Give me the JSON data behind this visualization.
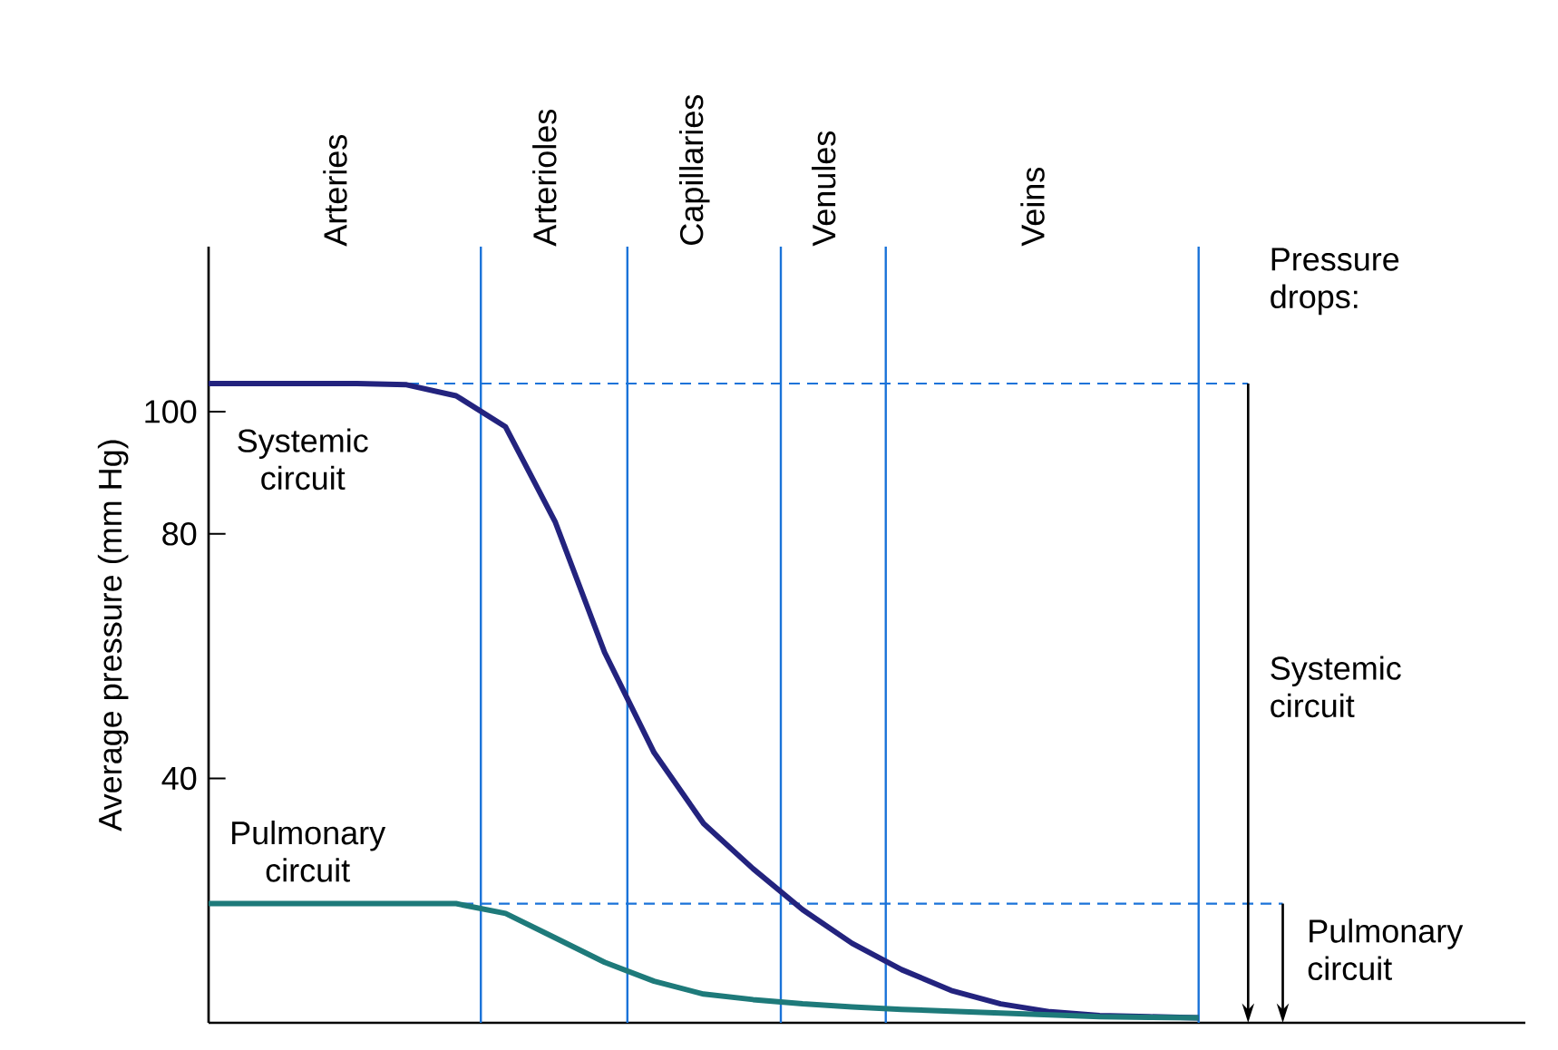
{
  "chart_data": {
    "type": "line",
    "ylabel": "Average pressure (mm Hg)",
    "ylim": [
      0,
      127
    ],
    "yticks": [
      40,
      80,
      100
    ],
    "tick_labels": "y",
    "marker": "none",
    "line_style": "solid",
    "categories": [
      null,
      null,
      null,
      null,
      null,
      null,
      null,
      null,
      null,
      null,
      null,
      null,
      null,
      null,
      null,
      null,
      null,
      null,
      null,
      null,
      null,
      null,
      null,
      null,
      null,
      null,
      null
    ],
    "series": [
      {
        "color": "#23237e",
        "values": [
          104.6,
          104.6,
          104.6,
          104.6,
          104.4,
          102.6,
          97.5,
          82,
          60.6,
          44.2,
          32.6,
          25.2,
          18.5,
          13,
          8.7,
          5.3,
          3.1,
          1.8,
          1.2,
          1,
          0.8,
          null,
          null,
          null,
          null,
          null,
          null
        ]
      },
      {
        "color": "#1e7a7a",
        "values": [
          19.5,
          19.5,
          19.5,
          19.5,
          19.5,
          19.5,
          17.9,
          13.9,
          9.9,
          6.8,
          4.7,
          3.8,
          3.1,
          2.6,
          2.2,
          1.9,
          1.6,
          1.3,
          1,
          0.9,
          0.8,
          null,
          null,
          null,
          null,
          null,
          null
        ]
      }
    ],
    "ref_lines": [
      {
        "axis": "y",
        "value": 104.6,
        "color": "#1a73d9",
        "line_style": "dashed"
      },
      {
        "axis": "y",
        "value": 19.5,
        "color": "#1a73d9",
        "line_style": "dashed"
      }
    ],
    "annotations": [
      "Arteries",
      "Arterioles",
      "Capillaries",
      "Venules",
      "Veins",
      "Pressure drops:",
      "Systemic circuit",
      "Pulmonary circuit",
      "Systemic circuit",
      "Pulmonary circuit"
    ]
  }
}
